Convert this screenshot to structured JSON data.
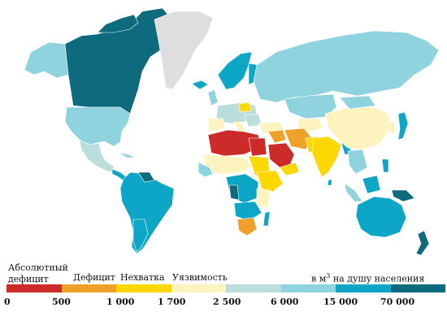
{
  "map": {
    "colors": {
      "absolute": "#cd2a2a",
      "deficit": "#efa02a",
      "stress": "#fcd800",
      "vuln": "#fdf3bf",
      "c5": "#bcdedb",
      "c6": "#8fd3df",
      "c7": "#0ea6c7",
      "c8": "#0e6a7d",
      "nodata": "#dedede"
    }
  },
  "legend": {
    "absolute_line1": "Абсолютный",
    "absolute_line2": "дефицит",
    "deficit": "Дефицит",
    "stress": "Нехватка",
    "vuln": "Уязвимость",
    "unit_prefix": "в м",
    "unit_exp": "3",
    "unit_suffix": " на душу населения",
    "ticks": [
      "0",
      "500",
      "1 000",
      "1 700",
      "2 500",
      "6 000",
      "15 000",
      "70 000"
    ],
    "colors": [
      "#cd2a2a",
      "#efa02a",
      "#fcd800",
      "#fdf3bf",
      "#bcdedb",
      "#8fd3df",
      "#0ea6c7",
      "#0e6a7d"
    ]
  }
}
